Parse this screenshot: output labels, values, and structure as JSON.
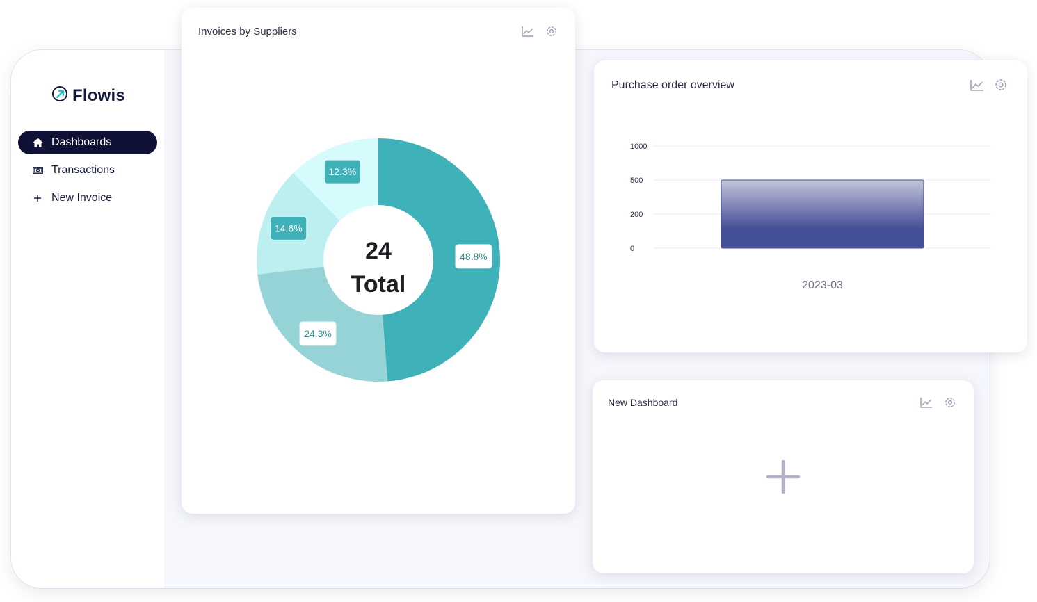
{
  "sidebar": {
    "logo_text": "Flowis",
    "items": [
      {
        "label": "Dashboards",
        "icon": "home-icon",
        "active": true
      },
      {
        "label": "Transactions",
        "icon": "banknote-icon",
        "active": false
      },
      {
        "label": "New Invoice",
        "icon": "plus-icon",
        "active": false
      }
    ]
  },
  "cards": {
    "invoices": {
      "title": "Invoices by Suppliers"
    },
    "purchase_orders": {
      "title": "Purchase order overview"
    },
    "new_dashboard": {
      "title": "New Dashboard"
    }
  },
  "colors": {
    "nav_active_bg": "#0f1136",
    "donut_series": [
      "#3fb1b9",
      "#95d3d7",
      "#bdeff1",
      "#d6fbfd"
    ],
    "bar_top": "#c3c4dc",
    "bar_bottom": "#434f96"
  },
  "chart_data": [
    {
      "type": "pie",
      "variant": "donut",
      "categories": [
        "",
        "",
        "",
        ""
      ],
      "values": [
        48.8,
        24.3,
        14.6,
        12.3
      ],
      "value_labels": [
        "48.8%",
        "24.3%",
        "14.6%",
        "12.3%"
      ],
      "center_value": "24",
      "center_label": "Total"
    },
    {
      "type": "bar",
      "categories": [
        "2023-03"
      ],
      "values": [
        500
      ],
      "y_ticks": [
        "0",
        "200",
        "500",
        "1000"
      ],
      "grid": true
    }
  ]
}
